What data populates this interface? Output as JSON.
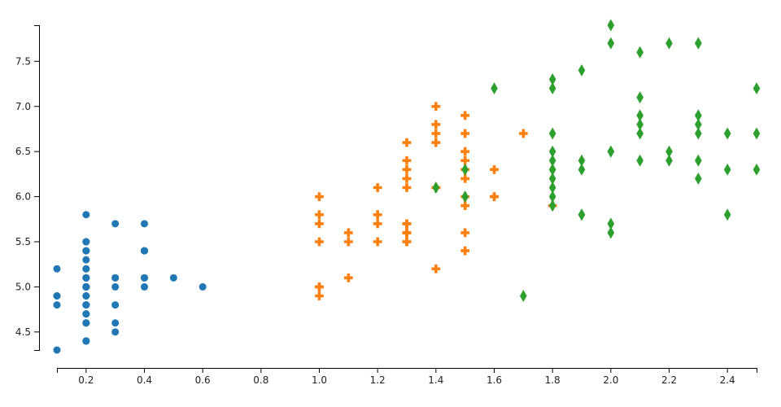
{
  "chart_data": {
    "type": "scatter",
    "xlim": [
      0.1,
      2.5
    ],
    "xticks": [
      0.2,
      0.4,
      0.6,
      0.8,
      {
        "value": 1,
        "label": "1.0"
      },
      1.2,
      1.4,
      1.6,
      1.8,
      {
        "value": 2,
        "label": "2.0"
      },
      2.2,
      2.4
    ],
    "ylim": [
      4.3,
      7.9
    ],
    "yticks": [
      4.5,
      {
        "value": 5,
        "label": "5.0"
      },
      5.5,
      {
        "value": 6,
        "label": "6.0"
      },
      6.5,
      {
        "value": 7,
        "label": "7.0"
      },
      7.5
    ],
    "series": [
      {
        "color": "#1f77b4",
        "marker": "circle",
        "x": [
          0.2,
          0.2,
          0.2,
          0.2,
          0.2,
          0.4,
          0.3,
          0.2,
          0.2,
          0.1,
          0.2,
          0.2,
          0.1,
          0.1,
          0.2,
          0.4,
          0.4,
          0.3,
          0.3,
          0.3,
          0.2,
          0.4,
          0.2,
          0.5,
          0.2,
          0.2,
          0.4,
          0.2,
          0.2,
          0.2,
          0.2,
          0.4,
          0.1,
          0.2,
          0.2,
          0.2,
          0.2,
          0.1,
          0.2,
          0.2,
          0.3,
          0.3,
          0.2,
          0.6,
          0.4,
          0.3,
          0.2,
          0.2,
          0.2,
          0.2
        ],
        "values": [
          5.1,
          4.9,
          4.7,
          4.6,
          5,
          5.4,
          4.6,
          5,
          4.4,
          4.9,
          5.4,
          4.8,
          4.8,
          4.3,
          5.8,
          5.7,
          5.4,
          5.1,
          5.7,
          5.1,
          5.4,
          5.1,
          4.6,
          5.1,
          4.8,
          5,
          5,
          5.2,
          5.2,
          4.7,
          4.8,
          5.4,
          5.2,
          5.5,
          4.9,
          5,
          5.5,
          4.9,
          4.4,
          5.1,
          5,
          4.5,
          4.4,
          5,
          5.1,
          4.8,
          5.1,
          4.6,
          5.3,
          5
        ]
      },
      {
        "color": "#ff7f0e",
        "marker": "cross",
        "x": [
          1.4,
          1.5,
          1.5,
          1.3,
          1.5,
          1.3,
          1.6,
          1,
          1.3,
          1.4,
          1,
          1.5,
          1,
          1.4,
          1.3,
          1.4,
          1.5,
          1,
          1.5,
          1.1,
          1.8,
          1.3,
          1.5,
          1.2,
          1.3,
          1.4,
          1.4,
          1.7,
          1.5,
          1,
          1.1,
          1,
          1.2,
          1.6,
          1.5,
          1.6,
          1.5,
          1.3,
          1.3,
          1.3,
          1.2,
          1.4,
          1.2,
          1,
          1.3,
          1.2,
          1.3,
          1.3,
          1.1,
          1.3
        ],
        "values": [
          7,
          6.4,
          6.9,
          5.5,
          6.5,
          5.7,
          6.3,
          4.9,
          6.6,
          5.2,
          5,
          5.9,
          6,
          6.1,
          5.6,
          6.7,
          5.6,
          5.8,
          6.2,
          5.6,
          5.9,
          6.1,
          6.3,
          6.1,
          6.4,
          6.6,
          6.8,
          6.7,
          6,
          5.7,
          5.5,
          5.5,
          5.8,
          6,
          5.4,
          6,
          6.7,
          6.3,
          5.6,
          5.5,
          5.5,
          6.1,
          5.8,
          5,
          5.6,
          5.7,
          5.7,
          6.2,
          5.1,
          5.7
        ]
      },
      {
        "color": "#2ca02c",
        "marker": "diamond",
        "x": [
          2.5,
          1.9,
          2.1,
          1.8,
          2.2,
          2.1,
          1.7,
          1.8,
          1.8,
          2.5,
          2,
          1.9,
          2.1,
          2,
          2.4,
          2.3,
          1.8,
          2.2,
          2.3,
          1.5,
          2.3,
          2,
          2,
          1.8,
          2.1,
          1.8,
          1.8,
          1.8,
          2.1,
          1.6,
          1.9,
          2,
          2.2,
          1.5,
          1.4,
          2.3,
          2.4,
          1.8,
          1.8,
          2.1,
          2.4,
          2.3,
          1.9,
          2.3,
          2.5,
          2.3,
          1.9,
          2,
          2.3,
          1.8
        ],
        "values": [
          6.3,
          5.8,
          7.1,
          6.3,
          6.5,
          7.6,
          4.9,
          7.3,
          6.7,
          7.2,
          6.5,
          6.4,
          6.8,
          5.7,
          5.8,
          6.4,
          6.5,
          7.7,
          7.7,
          6,
          6.9,
          5.6,
          7.7,
          6.3,
          6.7,
          7.2,
          6.2,
          6.1,
          6.4,
          7.2,
          7.4,
          7.9,
          6.4,
          6.3,
          6.1,
          7.7,
          6.3,
          6.4,
          6,
          6.9,
          6.7,
          6.9,
          5.8,
          6.8,
          6.7,
          6.7,
          6.3,
          6.5,
          6.2,
          5.9
        ]
      }
    ]
  }
}
